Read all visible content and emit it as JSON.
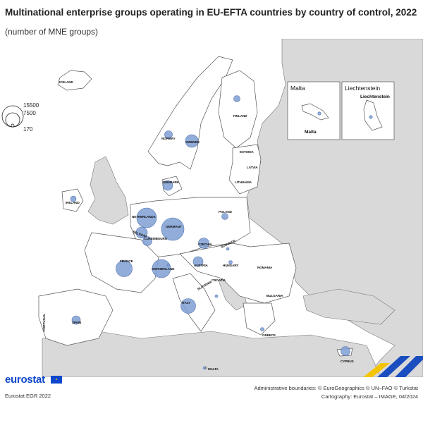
{
  "header": {
    "title": "Multinational enterprise groups operating in EU-EFTA countries by country of control, 2022",
    "subtitle": "(number of MNE groups)"
  },
  "legend": {
    "values": [
      "15500",
      "7500",
      "170"
    ]
  },
  "countries": [
    {
      "key": "iceland",
      "label": "ICELAND"
    },
    {
      "key": "norway",
      "label": "NORWAY"
    },
    {
      "key": "sweden",
      "label": "SWEDEN"
    },
    {
      "key": "finland",
      "label": "FINLAND"
    },
    {
      "key": "estonia",
      "label": "ESTONIA"
    },
    {
      "key": "latvia",
      "label": "LATVIA"
    },
    {
      "key": "lithuania",
      "label": "LITHUANIA"
    },
    {
      "key": "denmark",
      "label": "DENMARK"
    },
    {
      "key": "ireland",
      "label": "IRELAND"
    },
    {
      "key": "netherlands",
      "label": "NETHERLANDS"
    },
    {
      "key": "belgium",
      "label": "BELGIUM"
    },
    {
      "key": "luxembourg",
      "label": "LUXEMBOURG"
    },
    {
      "key": "germany",
      "label": "GERMANY"
    },
    {
      "key": "poland",
      "label": "POLAND"
    },
    {
      "key": "czechia",
      "label": "CZECHIA"
    },
    {
      "key": "slovakia",
      "label": "SLOVAKIA"
    },
    {
      "key": "austria",
      "label": "AUSTRIA"
    },
    {
      "key": "hungary",
      "label": "HUNGARY"
    },
    {
      "key": "france",
      "label": "FRANCE"
    },
    {
      "key": "switzerland",
      "label": "SWITZERLAND"
    },
    {
      "key": "slovenia",
      "label": "SLOVENIA"
    },
    {
      "key": "croatia",
      "label": "CROATIA"
    },
    {
      "key": "romania",
      "label": "ROMANIA"
    },
    {
      "key": "bulgaria",
      "label": "BULGARIA"
    },
    {
      "key": "italy",
      "label": "ITALY"
    },
    {
      "key": "spain",
      "label": "SPAIN"
    },
    {
      "key": "portugal",
      "label": "PORTUGAL"
    },
    {
      "key": "greece",
      "label": "GREECE"
    },
    {
      "key": "cyprus",
      "label": "CYPRUS"
    },
    {
      "key": "malta",
      "label": "MALTA"
    }
  ],
  "insets": {
    "malta_title": "Malta",
    "malta_label": "Malta",
    "liechtenstein_title": "Liechtenstein",
    "liechtenstein_label": "Liechtenstein"
  },
  "colors": {
    "bubble": "#7f9fd4",
    "bubble_stroke": "#4f72b0",
    "eu_land": "#ffffff",
    "non_eu_land": "#d9d9d9",
    "border": "#555555"
  },
  "footer": {
    "logo": "eurostat",
    "source": "Eurostat EGR 2022",
    "boundaries": "Administrative boundaries: © EuroGeographics © UN–FAO © Turkstat",
    "cartography": "Cartography: Eurostat – IMAGE, 04/2024"
  }
}
